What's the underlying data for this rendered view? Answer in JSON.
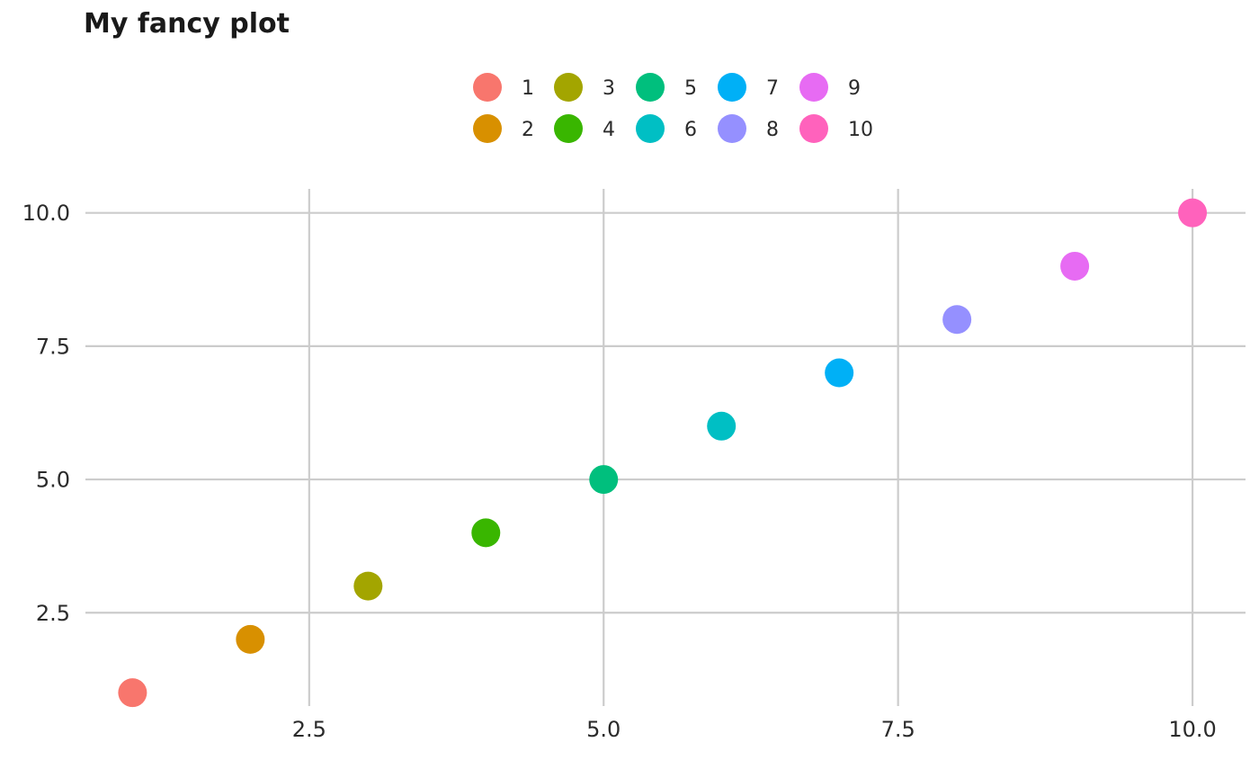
{
  "chart_data": {
    "type": "scatter",
    "title": "My fancy plot",
    "xlabel": "",
    "ylabel": "",
    "xlim": [
      0.6,
      10.45
    ],
    "ylim": [
      0.75,
      10.45
    ],
    "x_ticks": [
      2.5,
      5.0,
      7.5,
      10.0
    ],
    "x_tick_labels": [
      "2.5",
      "5.0",
      "7.5",
      "10.0"
    ],
    "y_ticks": [
      2.5,
      5.0,
      7.5,
      10.0
    ],
    "y_tick_labels": [
      "2.5",
      "5.0",
      "7.5",
      "10.0"
    ],
    "grid": true,
    "legend_position": "top",
    "series": [
      {
        "name": "1",
        "color": "#F8766D",
        "x": 1,
        "y": 1
      },
      {
        "name": "2",
        "color": "#D89000",
        "x": 2,
        "y": 2
      },
      {
        "name": "3",
        "color": "#A3A500",
        "x": 3,
        "y": 3
      },
      {
        "name": "4",
        "color": "#39B600",
        "x": 4,
        "y": 4
      },
      {
        "name": "5",
        "color": "#00BF7D",
        "x": 5,
        "y": 5
      },
      {
        "name": "6",
        "color": "#00BFC4",
        "x": 6,
        "y": 6
      },
      {
        "name": "7",
        "color": "#00B0F6",
        "x": 7,
        "y": 7
      },
      {
        "name": "8",
        "color": "#9590FF",
        "x": 8,
        "y": 8
      },
      {
        "name": "9",
        "color": "#E76BF3",
        "x": 9,
        "y": 9
      },
      {
        "name": "10",
        "color": "#FF62BC",
        "x": 10,
        "y": 10
      }
    ]
  },
  "gridline_color": "#cccccc"
}
